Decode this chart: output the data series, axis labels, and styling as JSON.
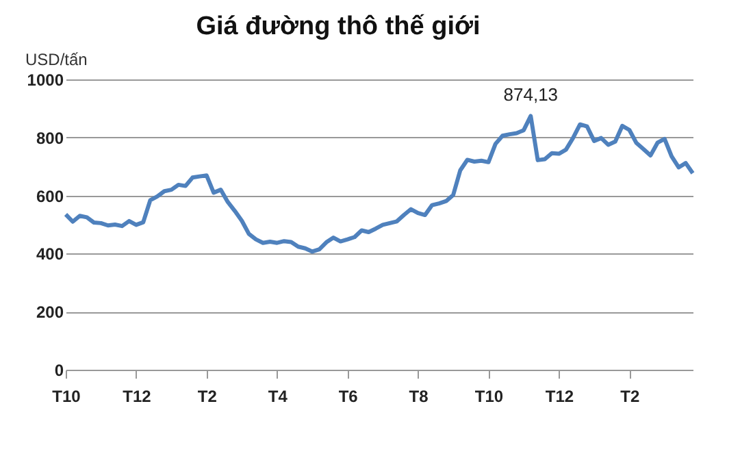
{
  "chart_data": {
    "type": "line",
    "title": "Giá đường thô thế giới",
    "ylabel": "USD/tấn",
    "categories": [
      "T10",
      null,
      null,
      null,
      null,
      null,
      null,
      null,
      null,
      null,
      "T12",
      null,
      null,
      null,
      null,
      null,
      null,
      null,
      null,
      null,
      "T2",
      null,
      null,
      null,
      null,
      null,
      null,
      null,
      null,
      null,
      "T4",
      null,
      null,
      null,
      null,
      null,
      null,
      null,
      null,
      null,
      "T6",
      null,
      null,
      null,
      null,
      null,
      null,
      null,
      null,
      null,
      "T8",
      null,
      null,
      null,
      null,
      null,
      null,
      null,
      null,
      null,
      "T10",
      null,
      null,
      null,
      null,
      null,
      null,
      null,
      null,
      null,
      "T12",
      null,
      null,
      null,
      null,
      null,
      null,
      null,
      null,
      null,
      "T2",
      null,
      null,
      null,
      null,
      null,
      null,
      null,
      null,
      null
    ],
    "series": [
      {
        "color": "#4f81bd",
        "values": [
          535,
          510,
          530,
          525,
          507,
          505,
          497,
          500,
          495,
          512,
          499,
          508,
          584,
          597,
          615,
          620,
          637,
          633,
          662,
          666,
          669,
          610,
          620,
          578,
          547,
          513,
          468,
          449,
          437,
          441,
          437,
          443,
          440,
          424,
          418,
          407,
          415,
          439,
          455,
          442,
          449,
          457,
          480,
          474,
          486,
          499,
          505,
          511,
          533,
          553,
          540,
          533,
          567,
          573,
          581,
          602,
          687,
          723,
          717,
          720,
          715,
          778,
          806,
          811,
          815,
          825,
          874.13,
          722,
          725,
          746,
          744,
          758,
          798,
          845,
          838,
          788,
          798,
          775,
          786,
          840,
          826,
          781,
          760,
          738,
          782,
          795,
          735,
          697,
          712,
          677
        ]
      }
    ],
    "ylim": [
      0,
      1000
    ],
    "yticks": [
      0,
      200,
      400,
      600,
      800,
      1000
    ],
    "grid": "y",
    "marker": "none",
    "line_style": "solid",
    "annotations": [
      {
        "text": "874,13",
        "y": 874.13
      }
    ]
  }
}
